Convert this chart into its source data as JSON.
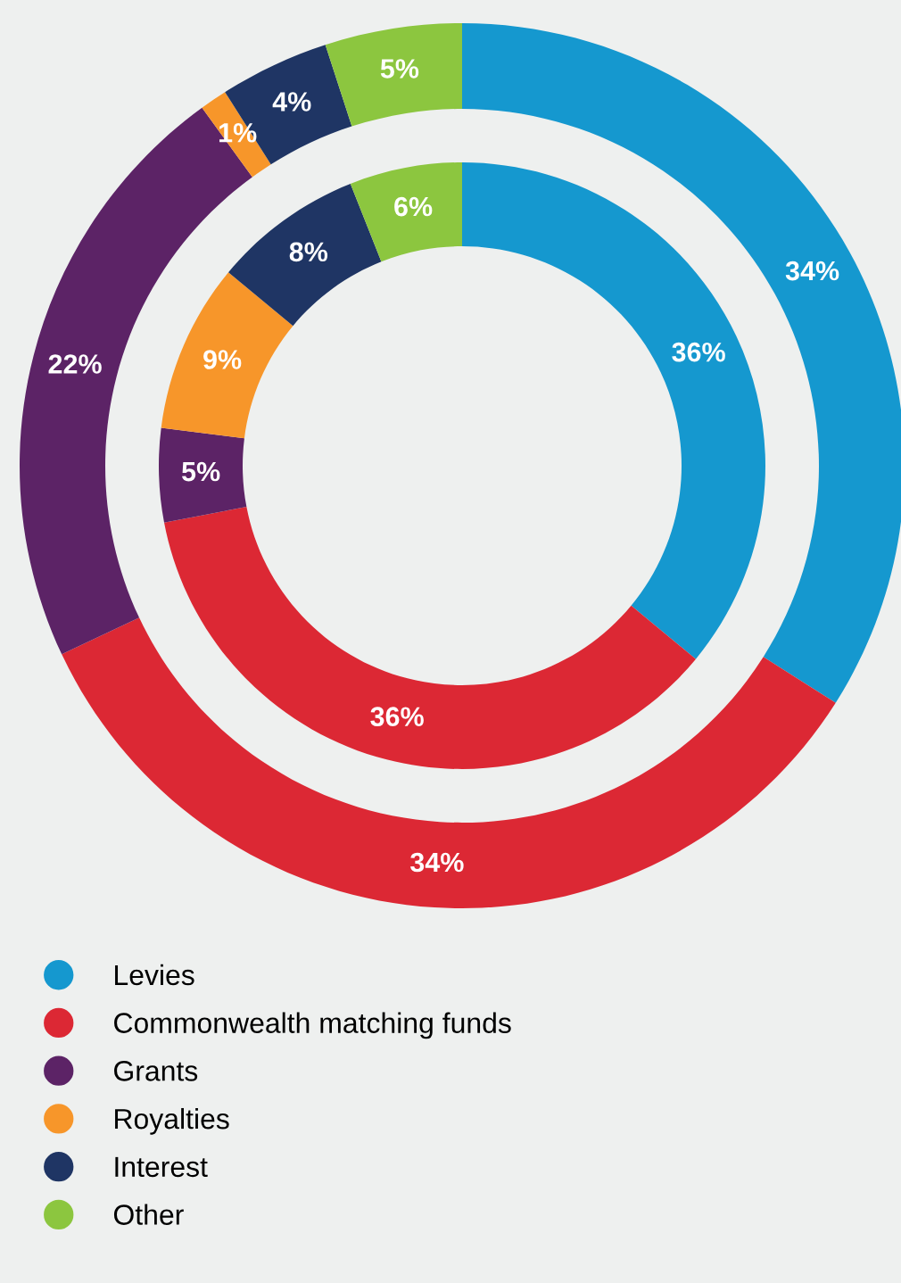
{
  "chart_data": {
    "type": "donut",
    "categories": [
      "Levies",
      "Commonwealth matching funds",
      "Grants",
      "Royalties",
      "Interest",
      "Other"
    ],
    "colors": [
      "#1598cf",
      "#dc2834",
      "#5c2366",
      "#f7962a",
      "#1f3564",
      "#8cc63f"
    ],
    "series": [
      {
        "values": [
          34,
          34,
          22,
          1,
          4,
          5
        ],
        "value_labels": [
          "34%",
          "34%",
          "22%",
          "1%",
          "4%",
          "5%"
        ]
      },
      {
        "values": [
          36,
          36,
          5,
          9,
          8,
          6
        ],
        "value_labels": [
          "36%",
          "36%",
          "5%",
          "9%",
          "8%",
          "6%"
        ]
      }
    ],
    "legend": "bottom"
  }
}
